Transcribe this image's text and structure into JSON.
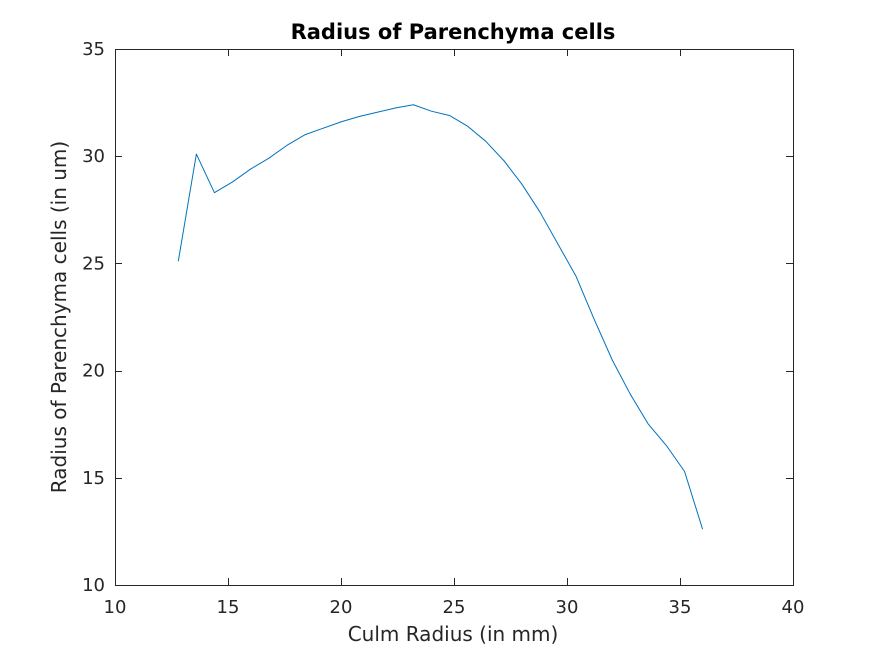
{
  "chart_data": {
    "type": "line",
    "title": "Radius of Parenchyma cells",
    "xlabel": "Culm Radius (in mm)",
    "ylabel": "Radius of Parenchyma cells (in um)",
    "xlim": [
      10,
      40
    ],
    "ylim": [
      10,
      35
    ],
    "xticks": [
      10,
      15,
      20,
      25,
      30,
      35,
      40
    ],
    "yticks": [
      10,
      15,
      20,
      25,
      30,
      35
    ],
    "xtick_labels": [
      "10",
      "15",
      "20",
      "25",
      "30",
      "35",
      "40"
    ],
    "ytick_labels": [
      "10",
      "15",
      "20",
      "25",
      "30",
      "35"
    ],
    "grid": false,
    "box": true,
    "line_color": "#0072BD",
    "axis_color": "#262626",
    "series": [
      {
        "x": [
          12.8,
          13.6,
          14.4,
          15.2,
          16.0,
          16.8,
          17.6,
          18.4,
          19.2,
          20.0,
          20.8,
          21.6,
          22.4,
          23.2,
          24.0,
          24.8,
          25.6,
          26.4,
          27.2,
          28.0,
          28.8,
          29.6,
          30.4,
          31.2,
          32.0,
          32.8,
          33.6,
          34.4,
          35.2,
          36.0
        ],
        "y": [
          25.1,
          30.1,
          28.3,
          28.8,
          29.4,
          29.9,
          30.5,
          31.0,
          31.3,
          31.6,
          31.85,
          32.05,
          32.25,
          32.4,
          32.1,
          31.9,
          31.4,
          30.7,
          29.8,
          28.7,
          27.4,
          25.9,
          24.4,
          22.4,
          20.5,
          18.9,
          17.5,
          16.5,
          15.3,
          12.6
        ]
      }
    ]
  }
}
